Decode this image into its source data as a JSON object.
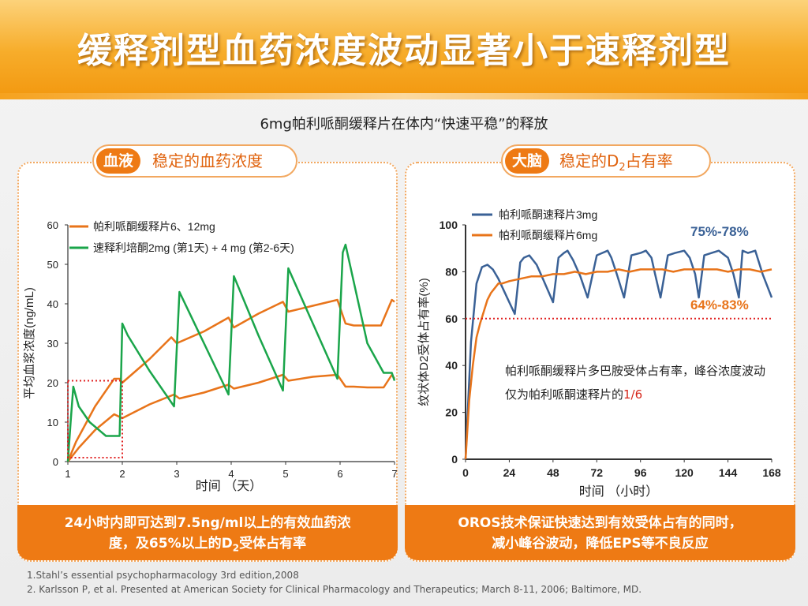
{
  "slide": {
    "title": "缓释剂型血药浓度波动显著小于速释剂型",
    "subtitle": "6mg帕利哌酮缓释片在体内“快速平稳”的释放"
  },
  "left_tag": {
    "circle": "血液",
    "text": "稳定的血药浓度"
  },
  "right_tag": {
    "circle": "大脑",
    "text_pre": "稳定的D",
    "text_sub": "2",
    "text_post": "占有率"
  },
  "left_footer": {
    "line1": "24小时内即可达到7.5ng/ml以上的有效血药浓",
    "line2_pre": "度，及65%以上的D",
    "line2_sub": "2",
    "line2_post": "受体占有率"
  },
  "right_footer": {
    "line1": "OROS技术保证快速达到有效受体占有的同时，",
    "line2": "减小峰谷波动，降低EPS等不良反应"
  },
  "note": {
    "text_pre": "帕利哌酮缓释片多巴胺受体占有率，峰谷浓度波动仅为帕利哌酮速释片的",
    "text_red": "1/6"
  },
  "references": [
    "1.Stahl’s essential psychopharmacology  3rd edition,2008",
    "2. Karlsson P, et al.  Presented at American Society for Clinical Pharmacology and Therapeutics;  March 8-11, 2006; Baltimore, MD."
  ],
  "colors": {
    "orange": "#e8741a",
    "green": "#1aa54a",
    "blue": "#3a6196",
    "red_dotted": "#e02020"
  },
  "chart_data": [
    {
      "type": "line",
      "xlabel": "时间 （天）",
      "ylabel": "平均血浆浓度(ng/mL)",
      "xlim": [
        1,
        7
      ],
      "ylim": [
        0,
        60
      ],
      "xticks": [
        "1",
        "2",
        "3",
        "4",
        "5",
        "6",
        "7"
      ],
      "yticks": [
        "0",
        "10",
        "20",
        "30",
        "40",
        "50",
        "60"
      ],
      "grid": false,
      "legend_position": "top-left",
      "series": [
        {
          "name": "帕利哌酮缓释片6、12mg",
          "color": "#e8741a",
          "x": [
            1.0,
            1.15,
            1.5,
            1.85,
            1.95,
            2.0,
            2.5,
            2.9,
            3.0,
            3.5,
            3.95,
            4.05,
            4.5,
            4.95,
            5.05,
            5.5,
            5.95,
            6.1,
            6.25,
            6.5,
            6.75,
            6.95,
            7.0
          ],
          "y": [
            0,
            5,
            14,
            21,
            21,
            20,
            26,
            31.5,
            30,
            33,
            36.5,
            34,
            37.5,
            40.5,
            38,
            39.5,
            41,
            35,
            34.5,
            34.5,
            34.5,
            41,
            40.5
          ]
        },
        {
          "name": "帕利哌酮缓释片6、12mg",
          "color": "#e8741a",
          "x": [
            1.0,
            1.2,
            1.5,
            1.85,
            2.0,
            2.5,
            2.95,
            3.05,
            3.5,
            3.95,
            4.05,
            4.5,
            4.95,
            5.05,
            5.5,
            5.95,
            6.1,
            6.25,
            6.5,
            6.8,
            6.95,
            7.0
          ],
          "y": [
            0,
            3.5,
            8,
            12,
            11,
            14.5,
            17,
            16,
            17.5,
            19.5,
            18.5,
            20,
            22,
            20.5,
            21.5,
            22,
            19,
            19,
            18.8,
            18.8,
            22,
            21
          ]
        },
        {
          "name": "速释利培酮2mg (第1天) + 4 mg (第2-6天)",
          "color": "#1aa54a",
          "x": [
            1.0,
            1.05,
            1.1,
            1.2,
            1.4,
            1.7,
            1.95,
            2.0,
            2.1,
            2.5,
            2.95,
            3.05,
            3.5,
            3.95,
            4.05,
            4.5,
            4.95,
            5.05,
            5.5,
            5.95,
            6.05,
            6.1,
            6.5,
            6.8,
            6.95,
            7.0
          ],
          "y": [
            0,
            10,
            19,
            14,
            10,
            6.5,
            6.5,
            35,
            32,
            23,
            14,
            43,
            30,
            17,
            47,
            32,
            18,
            49,
            35,
            21,
            53,
            55,
            30,
            22.5,
            22.5,
            20.5
          ]
        }
      ],
      "annotation": {
        "type": "dotted-box",
        "x": [
          1,
          2
        ],
        "y": [
          1,
          20.5
        ],
        "color": "#e02020"
      }
    },
    {
      "type": "line",
      "xlabel": "时间 （小时）",
      "ylabel": "纹状体D2受体占有率(%)",
      "xlim": [
        0,
        168
      ],
      "ylim": [
        0,
        100
      ],
      "xticks": [
        "0",
        "24",
        "48",
        "72",
        "96",
        "120",
        "144",
        "168"
      ],
      "yticks": [
        "0",
        "20",
        "40",
        "60",
        "80",
        "100"
      ],
      "grid": false,
      "legend_position": "top-left",
      "series": [
        {
          "name": "帕利哌酮速释片3mg",
          "color": "#3a6196",
          "x": [
            0,
            3,
            6,
            9,
            12,
            15,
            18,
            21,
            24,
            27,
            30,
            32,
            35,
            39,
            43,
            48,
            51,
            54,
            56,
            59,
            63,
            67,
            72,
            75,
            78,
            80,
            83,
            87,
            91,
            96,
            99,
            102,
            104,
            107,
            111,
            115,
            120,
            123,
            126,
            128,
            131,
            135,
            139,
            144,
            147,
            150,
            152,
            155,
            159,
            163,
            168
          ],
          "y": [
            0,
            50,
            75,
            82,
            83,
            81,
            77,
            72,
            67,
            62,
            84,
            86,
            87,
            83,
            76,
            67,
            86,
            88,
            89,
            85,
            78,
            69,
            87,
            88,
            89,
            86,
            79,
            69,
            87,
            88,
            89,
            86,
            79,
            69,
            87,
            88,
            89,
            86,
            79,
            69,
            87,
            88,
            89,
            86,
            79,
            69,
            89,
            88,
            89,
            79,
            69
          ]
        },
        {
          "name": "帕利哌酮缓释片6mg",
          "color": "#e8741a",
          "x": [
            0,
            2,
            4,
            6,
            8,
            10,
            12,
            14,
            16,
            18,
            20,
            24,
            30,
            36,
            42,
            48,
            54,
            60,
            66,
            72,
            78,
            84,
            90,
            96,
            102,
            108,
            114,
            120,
            126,
            132,
            138,
            144,
            150,
            156,
            162,
            168
          ],
          "y": [
            0,
            25,
            40,
            52,
            58,
            63,
            68,
            71,
            73,
            75,
            75,
            76,
            77,
            78,
            78,
            79,
            79,
            80,
            79,
            80,
            80,
            81,
            80,
            81,
            81,
            81,
            80,
            81,
            81,
            81,
            81,
            80,
            81,
            81,
            80,
            81
          ]
        }
      ],
      "reference_line": {
        "y": 60,
        "color": "#e02020",
        "style": "dotted"
      },
      "annotations": [
        {
          "text": "75%-78%",
          "color": "#3a6196"
        },
        {
          "text": "64%-83%",
          "color": "#e8741a"
        }
      ]
    }
  ]
}
